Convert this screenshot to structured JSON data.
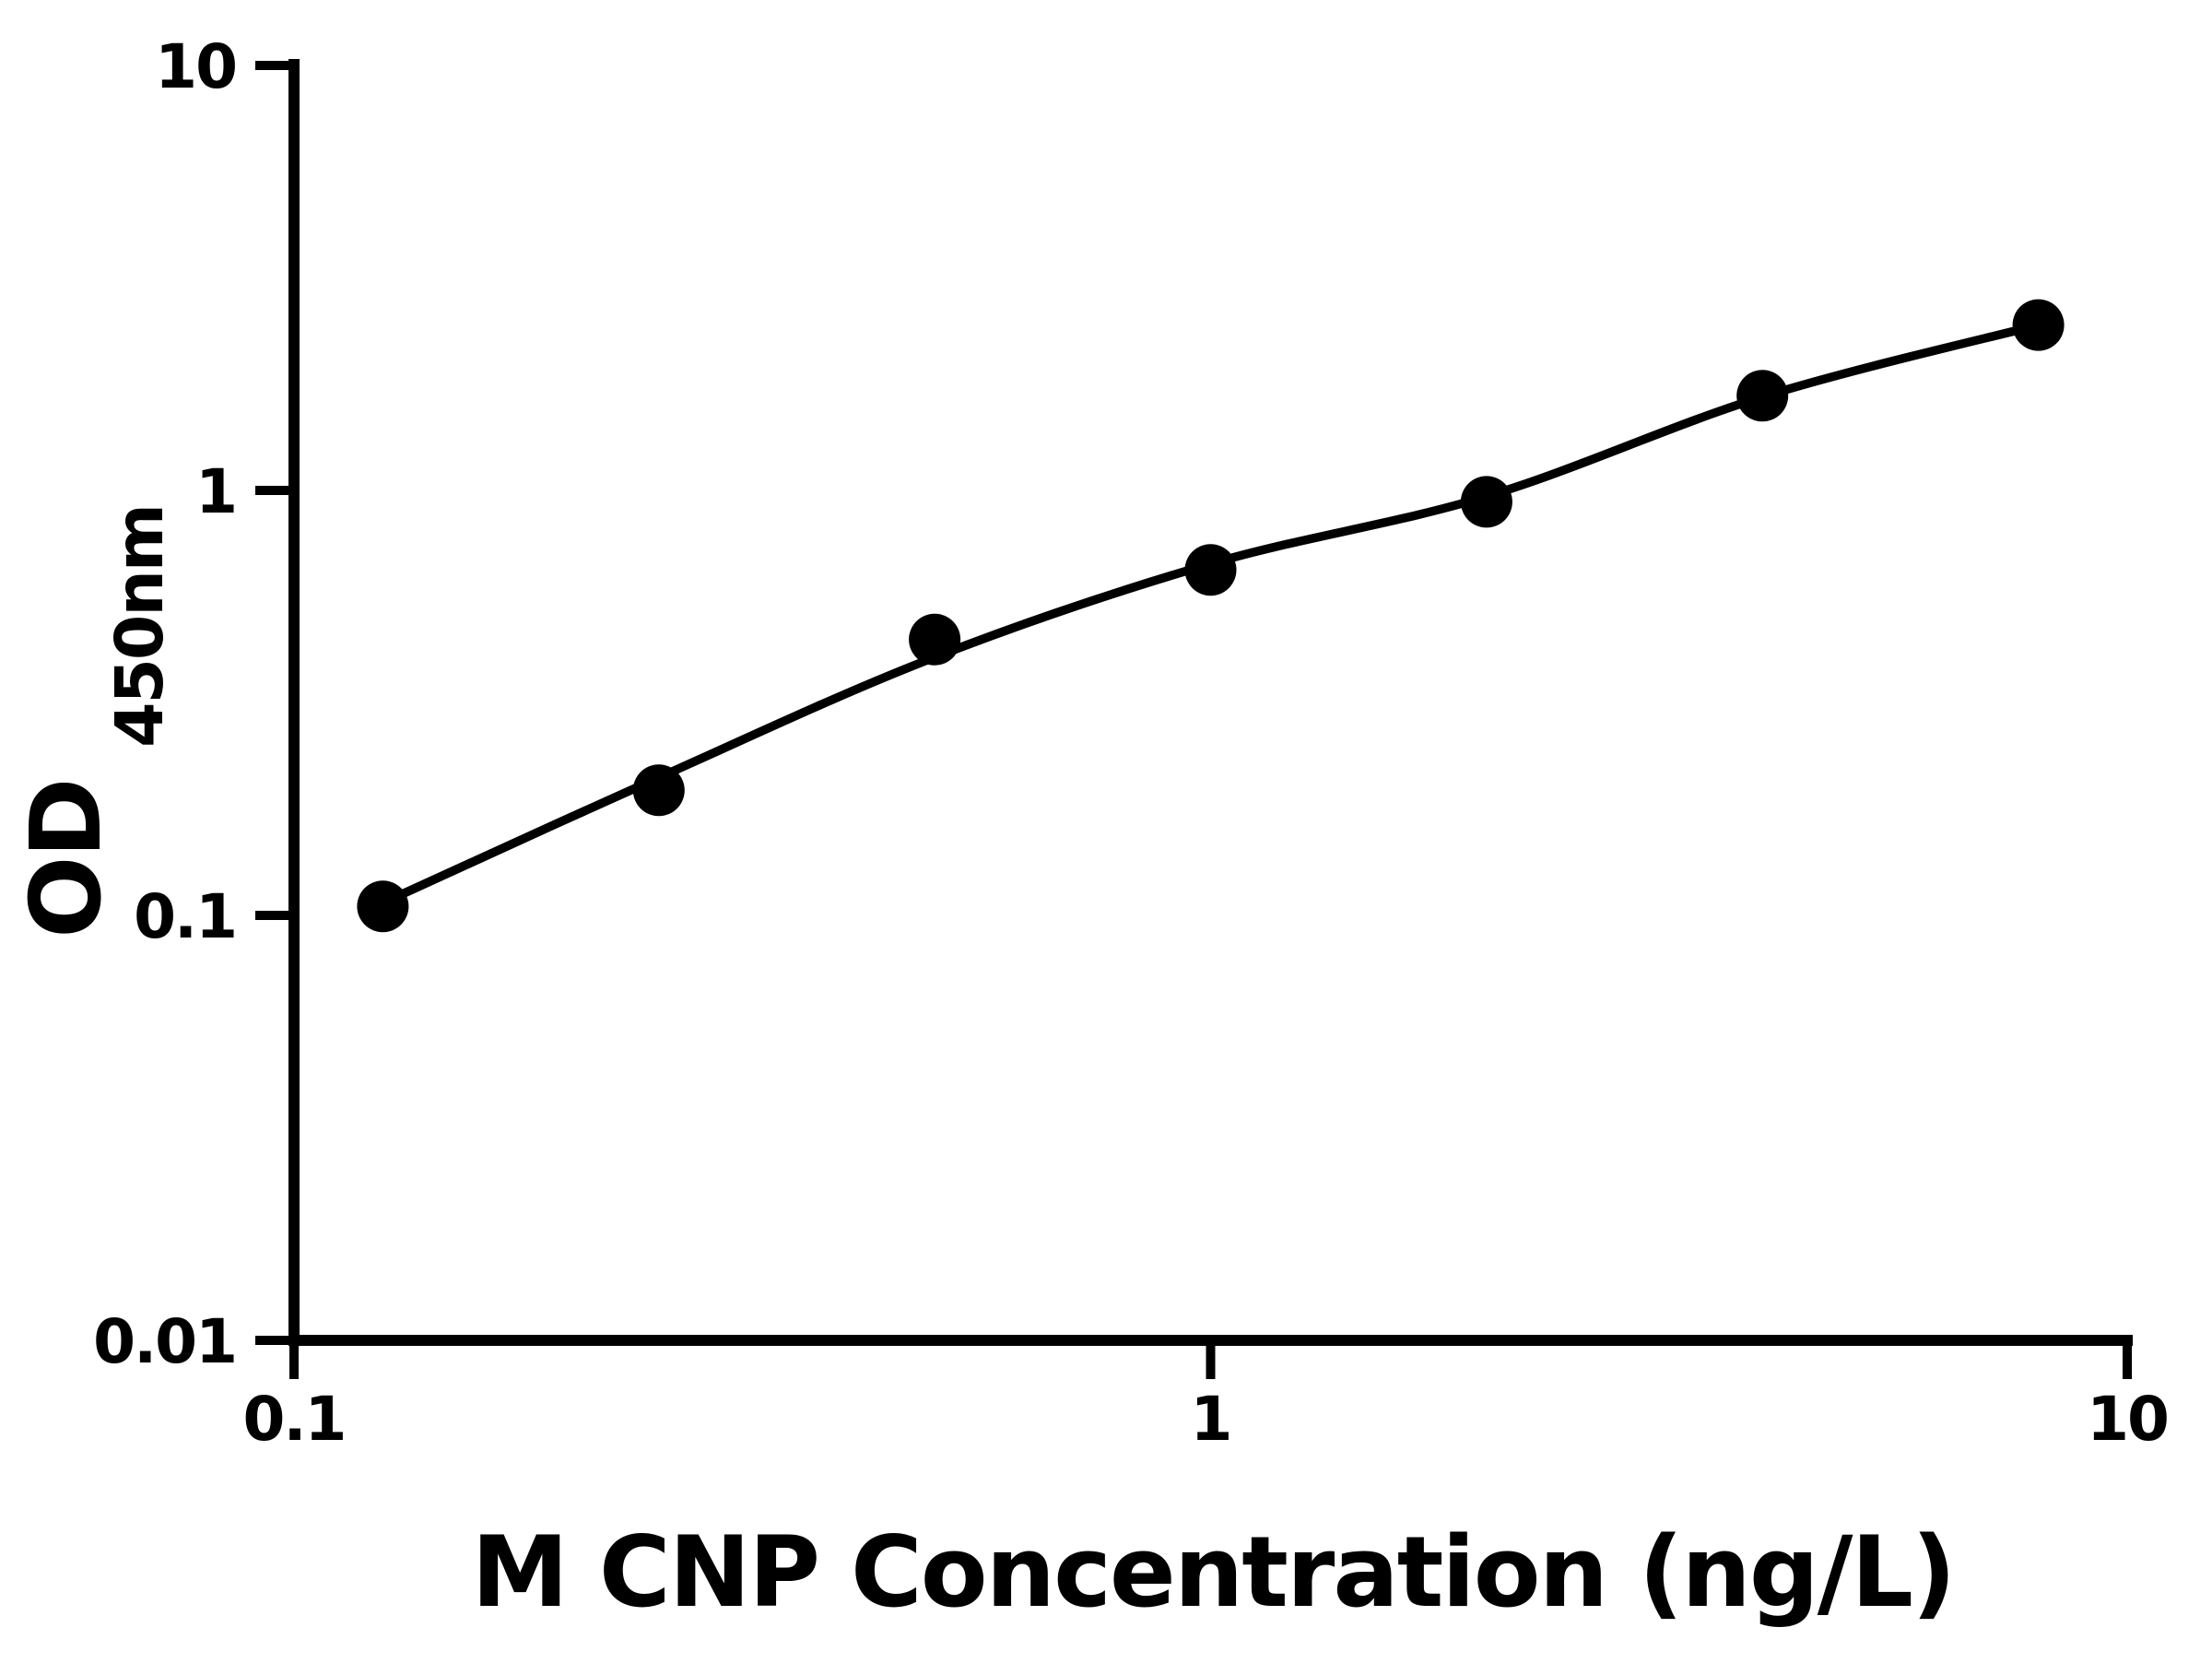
{
  "chart_data": {
    "type": "scatter",
    "title": "",
    "xlabel": "M CNP Concentration (ng/L)",
    "ylabel_main": "OD",
    "ylabel_sub": "450nm",
    "x_scale": "log",
    "y_scale": "log",
    "xlim": [
      0.1,
      10
    ],
    "ylim": [
      0.01,
      10
    ],
    "grid": false,
    "legend": "none",
    "x_ticks": [
      {
        "value": 0.1,
        "label": "0.1"
      },
      {
        "value": 1,
        "label": "1"
      },
      {
        "value": 10,
        "label": "10"
      }
    ],
    "y_ticks": [
      {
        "value": 0.01,
        "label": "0.01"
      },
      {
        "value": 0.1,
        "label": "0.1"
      },
      {
        "value": 1,
        "label": "1"
      },
      {
        "value": 10,
        "label": "10"
      }
    ],
    "points": [
      {
        "x": 0.125,
        "y": 0.105
      },
      {
        "x": 0.25,
        "y": 0.197
      },
      {
        "x": 0.5,
        "y": 0.446
      },
      {
        "x": 1,
        "y": 0.65
      },
      {
        "x": 2,
        "y": 0.94
      },
      {
        "x": 4,
        "y": 1.67
      },
      {
        "x": 8,
        "y": 2.45
      }
    ],
    "fit_curve": [
      {
        "x": 0.125,
        "y": 0.107
      },
      {
        "x": 0.25,
        "y": 0.211
      },
      {
        "x": 0.5,
        "y": 0.405
      },
      {
        "x": 1,
        "y": 0.672
      },
      {
        "x": 2,
        "y": 0.968
      },
      {
        "x": 4,
        "y": 1.66
      },
      {
        "x": 8,
        "y": 2.45
      }
    ],
    "marker_color": "#000000",
    "line_color": "#000000",
    "background": "#ffffff"
  }
}
